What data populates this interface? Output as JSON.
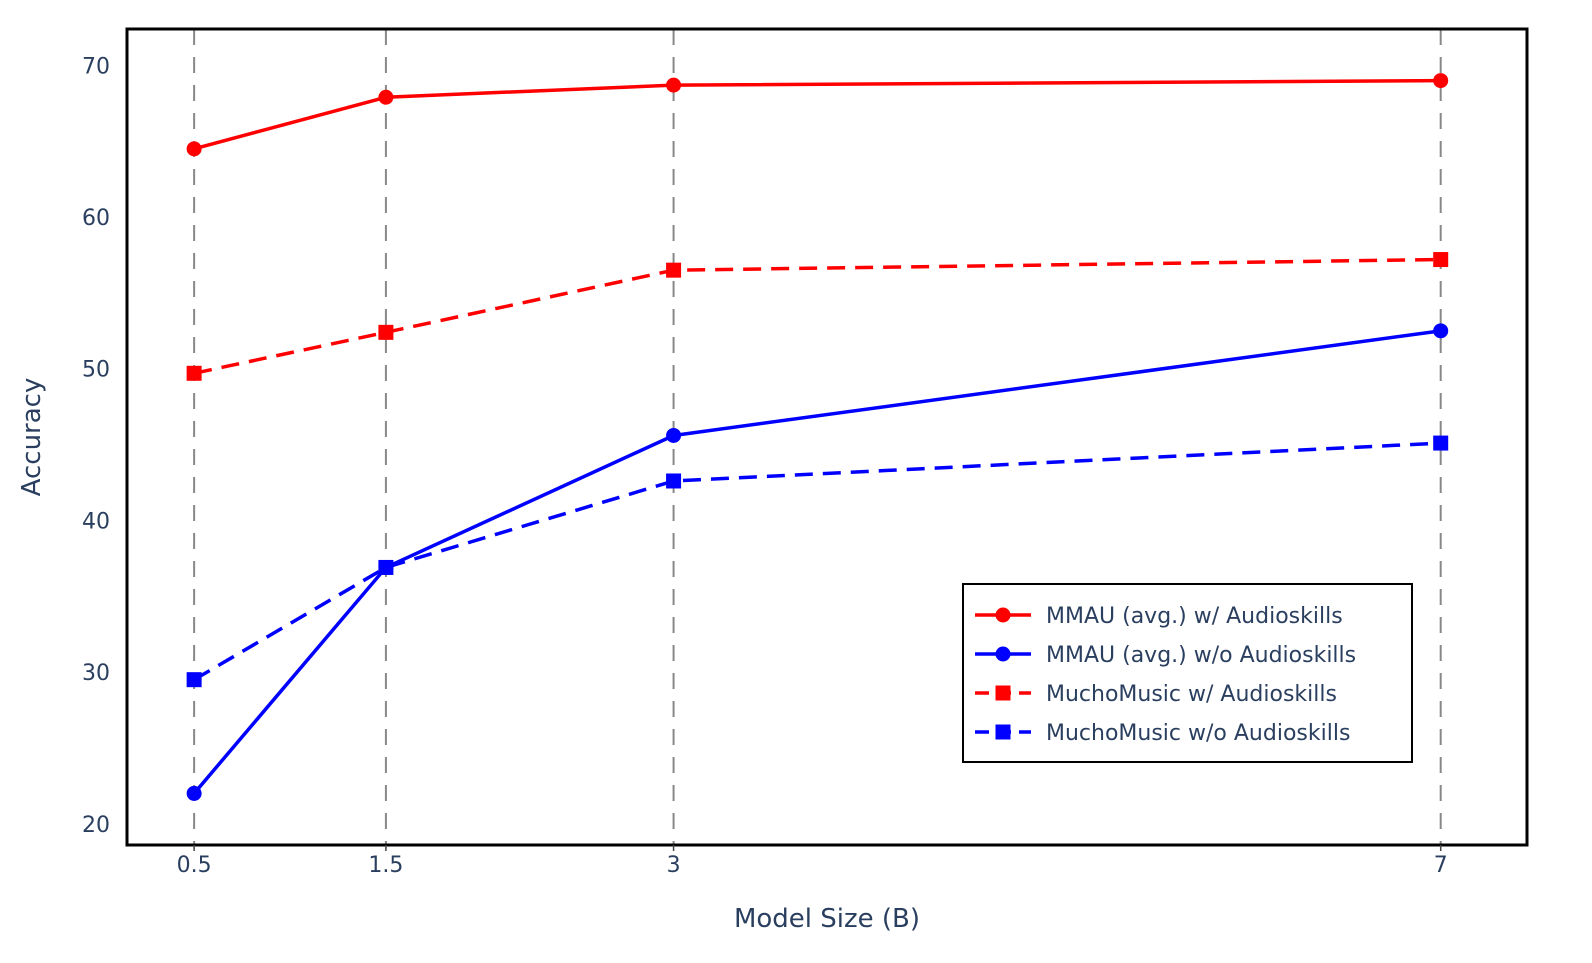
{
  "chart_data": {
    "type": "line",
    "xlabel": "Model Size (B)",
    "ylabel": "Accuracy",
    "x": [
      0.5,
      1.5,
      3,
      7
    ],
    "x_tick_labels": [
      "0.5",
      "1.5",
      "3",
      "7"
    ],
    "xlim": [
      0.15,
      7.45
    ],
    "ylim": [
      18.6,
      72.4
    ],
    "y_ticks": [
      20,
      30,
      40,
      50,
      60,
      70
    ],
    "grid": "vertical dashed at x ticks",
    "legend_position": "bottom-right",
    "series": [
      {
        "name": "MMAU (avg.) w/ Audioskills",
        "values": [
          64.5,
          67.9,
          68.7,
          69.0
        ],
        "color": "#ff0000",
        "dash": "solid",
        "marker": "circle"
      },
      {
        "name": "MMAU (avg.) w/o Audioskills",
        "values": [
          22.0,
          36.9,
          45.6,
          52.5
        ],
        "color": "#0000ff",
        "dash": "solid",
        "marker": "circle"
      },
      {
        "name": "MuchoMusic w/ Audioskills",
        "values": [
          49.7,
          52.4,
          56.5,
          57.2
        ],
        "color": "#ff0000",
        "dash": "dashed",
        "marker": "square"
      },
      {
        "name": "MuchoMusic w/o Audioskills",
        "values": [
          29.5,
          36.9,
          42.6,
          45.1
        ],
        "color": "#0000ff",
        "dash": "dashed",
        "marker": "square"
      }
    ]
  }
}
